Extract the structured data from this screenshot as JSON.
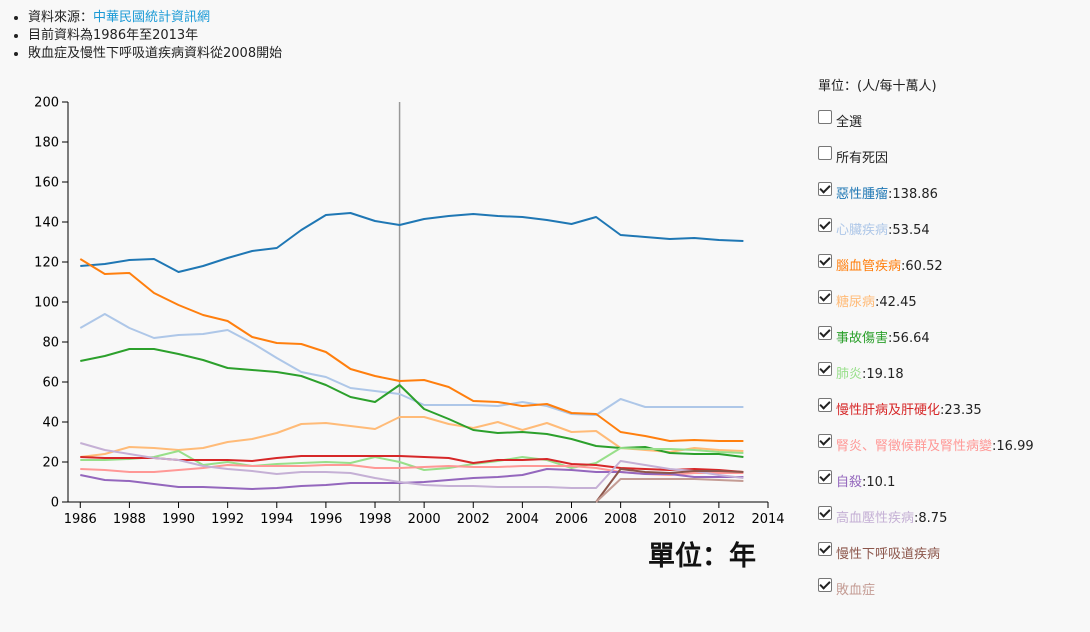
{
  "notes": {
    "source_prefix": "資料來源：",
    "source_link": "中華民國統計資訊網",
    "range": "目前資料為1986年至2013年",
    "note": "敗血症及慢性下呼吸道疾病資料從2008開始"
  },
  "x_unit": "單位：年",
  "legend": {
    "unit": "單位：(人/每十萬人)",
    "items": [
      {
        "label": "全選",
        "value": "",
        "checked": false,
        "color": "#222222"
      },
      {
        "label": "所有死因",
        "value": "",
        "checked": false,
        "color": "#222222"
      },
      {
        "label": "惡性腫瘤",
        "value": ":138.86",
        "checked": true,
        "color": "#1f77b4"
      },
      {
        "label": "心臟疾病",
        "value": ":53.54",
        "checked": true,
        "color": "#aec7e8"
      },
      {
        "label": "腦血管疾病",
        "value": ":60.52",
        "checked": true,
        "color": "#ff7f0e"
      },
      {
        "label": "糖尿病",
        "value": ":42.45",
        "checked": true,
        "color": "#ffbb78"
      },
      {
        "label": "事故傷害",
        "value": ":56.64",
        "checked": true,
        "color": "#2ca02c"
      },
      {
        "label": "肺炎",
        "value": ":19.18",
        "checked": true,
        "color": "#98df8a"
      },
      {
        "label": "慢性肝病及肝硬化",
        "value": ":23.35",
        "checked": true,
        "color": "#d62728"
      },
      {
        "label": "腎炎、腎徵候群及腎性病變",
        "value": ":16.99",
        "checked": true,
        "color": "#ff9896"
      },
      {
        "label": "自殺",
        "value": ":10.1",
        "checked": true,
        "color": "#9467bd"
      },
      {
        "label": "高血壓性疾病",
        "value": ":8.75",
        "checked": true,
        "color": "#c5b0d5"
      },
      {
        "label": "慢性下呼吸道疾病",
        "value": "",
        "checked": true,
        "color": "#8c564b"
      },
      {
        "label": "敗血症",
        "value": "",
        "checked": true,
        "color": "#c49c94"
      }
    ]
  },
  "chart_data": {
    "type": "line",
    "x": [
      1986,
      1987,
      1988,
      1989,
      1990,
      1991,
      1992,
      1993,
      1994,
      1995,
      1996,
      1997,
      1998,
      1999,
      2000,
      2001,
      2002,
      2003,
      2004,
      2005,
      2006,
      2007,
      2008,
      2009,
      2010,
      2011,
      2012,
      2013
    ],
    "xlim": [
      1985.5,
      2014
    ],
    "ylim": [
      0,
      200
    ],
    "xticks": [
      "1986",
      "1988",
      "1990",
      "1992",
      "1994",
      "1996",
      "1998",
      "2000",
      "2002",
      "2004",
      "2006",
      "2008",
      "2010",
      "2012",
      "2014"
    ],
    "yticks": [
      "0",
      "20",
      "40",
      "60",
      "80",
      "100",
      "120",
      "140",
      "160",
      "180",
      "200"
    ],
    "hover_year": 1999,
    "grid": false,
    "series": [
      {
        "name": "惡性腫瘤",
        "color": "#1f77b4",
        "values": [
          118,
          119,
          121,
          121.5,
          115,
          118,
          122,
          125.5,
          127,
          136,
          143.5,
          144.5,
          140.5,
          138.5,
          141.5,
          143,
          144,
          143,
          142.5,
          141,
          139,
          142.5,
          133.5,
          132.5,
          131.5,
          132,
          131,
          130.5
        ]
      },
      {
        "name": "心臟疾病",
        "color": "#aec7e8",
        "values": [
          87,
          94,
          87,
          82,
          83.5,
          84,
          86,
          79.5,
          72,
          65,
          62.5,
          57,
          55.5,
          54,
          48.5,
          48.5,
          48.5,
          48,
          50,
          48,
          44,
          43.5,
          51.5,
          47.5,
          47.5,
          47.5,
          47.5,
          47.5
        ]
      },
      {
        "name": "腦血管疾病",
        "color": "#ff7f0e",
        "values": [
          121.5,
          114,
          114.5,
          104.5,
          98.5,
          93.5,
          90.5,
          82.5,
          79.5,
          79,
          75,
          66.5,
          63,
          60.5,
          61,
          57.5,
          50.5,
          50,
          48,
          49,
          44.5,
          44,
          35,
          33,
          30.5,
          31,
          30.5,
          30.5
        ]
      },
      {
        "name": "糖尿病",
        "color": "#ffbb78",
        "values": [
          22.5,
          24,
          27.5,
          27,
          26,
          27,
          30,
          31.5,
          34.5,
          39,
          39.5,
          38,
          36.5,
          42.5,
          42.5,
          39,
          37,
          40,
          36,
          39.5,
          35,
          35.5,
          27,
          26,
          25,
          27,
          26,
          25.5
        ]
      },
      {
        "name": "事故傷害",
        "color": "#2ca02c",
        "values": [
          70.5,
          73,
          76.5,
          76.5,
          74,
          71,
          67,
          66,
          65,
          63,
          58.5,
          52.5,
          50,
          58.5,
          46.5,
          41.5,
          36,
          34.5,
          35,
          34,
          31.5,
          28,
          27,
          27.5,
          24.5,
          24,
          24,
          22.5
        ]
      },
      {
        "name": "肺炎",
        "color": "#98df8a",
        "values": [
          21,
          21,
          21.5,
          22.5,
          25.5,
          18.5,
          20,
          18,
          19,
          19.5,
          20,
          19.5,
          22.5,
          20,
          16,
          17,
          19,
          20.5,
          22.5,
          21,
          17,
          19.5,
          27,
          26.5,
          26.5,
          26,
          25,
          24.5
        ]
      },
      {
        "name": "慢性肝病及肝硬化",
        "color": "#d62728",
        "values": [
          22.5,
          22,
          22,
          22,
          21,
          21,
          21,
          20.5,
          22,
          23,
          23,
          23,
          23,
          23,
          22.5,
          22,
          19.5,
          21,
          21,
          21.5,
          19,
          18.5,
          17,
          16.5,
          16,
          16.5,
          16,
          15
        ]
      },
      {
        "name": "腎炎、腎徵候群及腎性病變",
        "color": "#ff9896",
        "values": [
          16.5,
          16,
          15,
          15,
          16,
          17,
          18.5,
          18,
          18,
          18,
          18.5,
          18.5,
          17,
          17,
          17.5,
          18,
          17.5,
          17.5,
          18,
          18,
          18,
          17,
          15,
          14,
          13.5,
          14.5,
          14.5,
          14.5
        ]
      },
      {
        "name": "自殺",
        "color": "#9467bd",
        "values": [
          13.5,
          11,
          10.5,
          9,
          7.5,
          7.5,
          7,
          6.5,
          7,
          8,
          8.5,
          9.5,
          9.5,
          9.5,
          10,
          11,
          12,
          12.5,
          13.5,
          16.5,
          16,
          15,
          15,
          14,
          14,
          12.5,
          12.5,
          12.5
        ]
      },
      {
        "name": "高血壓性疾病",
        "color": "#c5b0d5",
        "values": [
          29.5,
          26,
          24,
          22,
          21,
          18,
          16.5,
          15.5,
          14,
          15,
          15,
          14.5,
          12,
          10,
          8.5,
          8,
          8,
          7.5,
          7.5,
          7.5,
          7,
          7,
          20.5,
          18.5,
          16.5,
          15.5,
          13.5,
          12
        ]
      },
      {
        "name": "慢性下呼吸道疾病",
        "color": "#8c564b",
        "values": [
          null,
          null,
          null,
          null,
          null,
          null,
          null,
          null,
          null,
          null,
          null,
          null,
          null,
          null,
          null,
          null,
          null,
          null,
          null,
          null,
          null,
          0,
          16.5,
          15,
          14.5,
          15.5,
          15.5,
          15
        ]
      },
      {
        "name": "敗血症",
        "color": "#c49c94",
        "values": [
          null,
          null,
          null,
          null,
          null,
          null,
          null,
          null,
          null,
          null,
          null,
          null,
          null,
          null,
          null,
          null,
          null,
          null,
          null,
          null,
          null,
          0,
          11.5,
          11.5,
          11.5,
          11.5,
          11,
          10.5
        ]
      }
    ]
  }
}
